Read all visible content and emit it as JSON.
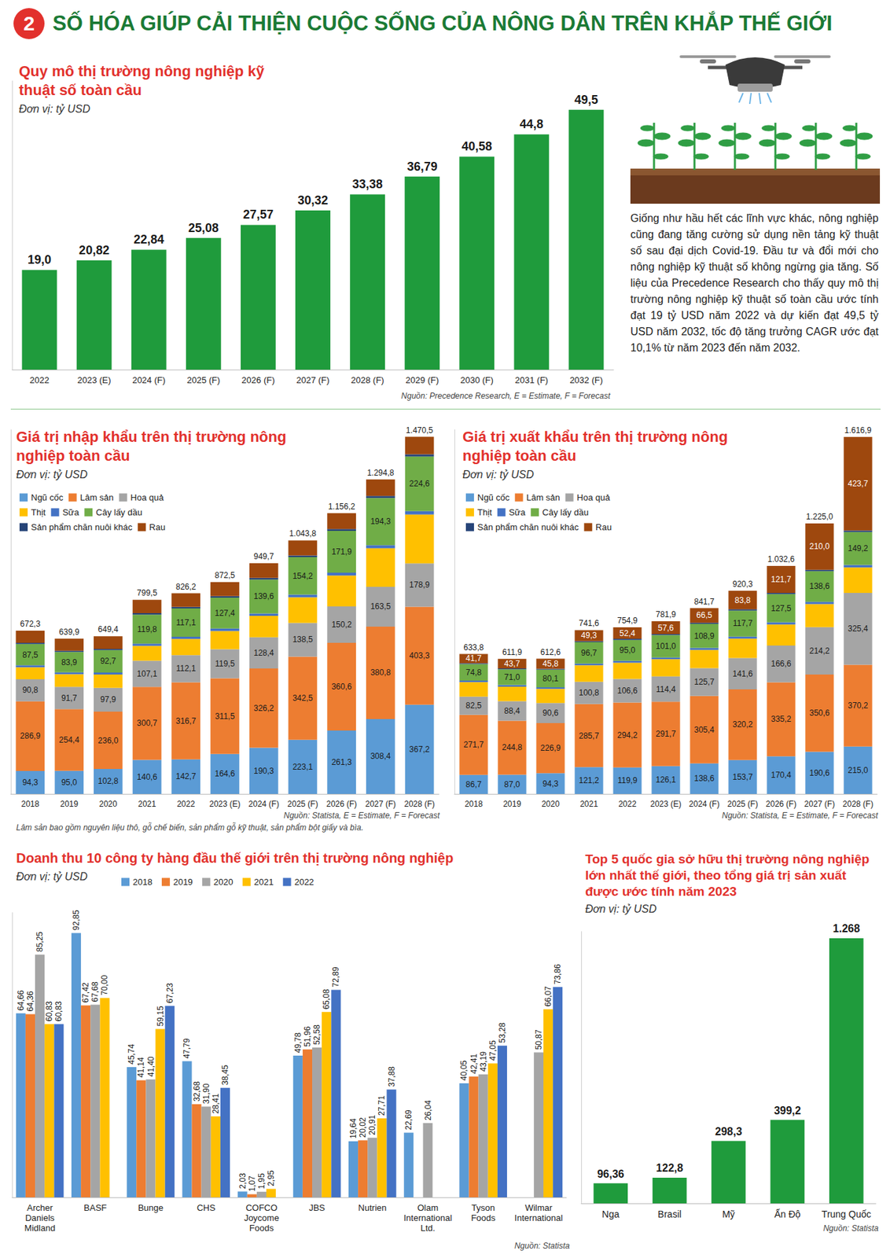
{
  "header": {
    "number": "2",
    "title": "SỐ HÓA GIÚP CẢI THIỆN CUỘC SỐNG CỦA NÔNG DÂN TRÊN KHẮP THẾ GIỚI"
  },
  "text": "Giống như hầu hết các lĩnh vực khác, nông nghiệp cũng đang tăng cường sử dụng nền tảng kỹ thuật số sau đại dịch Covid-19. Đầu tư và đổi mới cho nông nghiệp kỹ thuật số không ngừng gia tăng. Số liệu của Precedence Research cho thấy quy mô thị trường nông nghiệp kỹ thuật số toàn cầu ước tính đạt 19 tỷ USD năm 2022 và dự kiến đạt 49,5 tỷ USD năm 2032, tốc độ tăng trưởng CAGR ước đạt 10,1% từ năm 2023 đến năm 2032.",
  "chart_data": [
    {
      "type": "bar",
      "title": "Quy mô thị trường nông nghiệp kỹ thuật số toàn cầu",
      "subtitle": "Đơn vị: tỷ USD",
      "source": "Nguồn: Precedence Research, E = Estimate, F = Forecast",
      "categories": [
        "2022",
        "2023 (E)",
        "2024 (F)",
        "2025 (F)",
        "2026 (F)",
        "2027 (F)",
        "2028 (F)",
        "2029 (F)",
        "2030 (F)",
        "2031 (F)",
        "2032 (F)"
      ],
      "values": [
        19.0,
        20.82,
        22.84,
        25.08,
        27.57,
        30.32,
        33.38,
        36.79,
        40.58,
        44.8,
        49.5
      ],
      "value_labels": [
        "19,0",
        "20,82",
        "22,84",
        "25,08",
        "27,57",
        "30,32",
        "33,38",
        "36,79",
        "40,58",
        "44,8",
        "49,5"
      ],
      "color": "#1f9b3c",
      "ylim": [
        0,
        55
      ],
      "grid": false,
      "data_labels": true,
      "tick_labels": "x"
    },
    {
      "type": "bar",
      "title": "Giá trị nhập khẩu trên thị trường nông nghiệp toàn cầu",
      "subtitle": "Đơn vị: tỷ USD",
      "source": "Nguồn: Statista, E = Estimate, F = Forecast",
      "note": "Lâm sản bao gồm nguyên liệu thô, gỗ chế biến, sản phẩm gỗ kỹ thuật, sản phẩm bột giấy và bìa.",
      "categories": [
        "2018",
        "2019",
        "2020",
        "2021",
        "2022",
        "2023 (E)",
        "2024 (F)",
        "2025 (F)",
        "2026 (F)",
        "2027 (F)",
        "2028 (F)"
      ],
      "series": [
        {
          "name": "Ngũ cốc",
          "color": "#5b9bd5",
          "data_labels": true,
          "values": [
            94.3,
            95.0,
            102.8,
            140.6,
            142.7,
            164.6,
            190.3,
            223.1,
            261.3,
            308.4,
            367.2
          ],
          "value_labels": [
            "94,3",
            "95,0",
            "102,8",
            "140,6",
            "142,7",
            "164,6",
            "190,3",
            "223,1",
            "261,3",
            "308,4",
            "367,2"
          ]
        },
        {
          "name": "Lâm sản",
          "color": "#ed7d31",
          "data_labels": true,
          "values": [
            286.9,
            254.4,
            236.0,
            300.7,
            316.7,
            311.5,
            326.2,
            342.5,
            360.6,
            380.8,
            403.3
          ],
          "value_labels": [
            "286,9",
            "254,4",
            "236,0",
            "300,7",
            "316,7",
            "311,5",
            "326,2",
            "342,5",
            "360,6",
            "380,8",
            "403,3"
          ]
        },
        {
          "name": "Hoa quả",
          "color": "#a5a5a5",
          "data_labels": true,
          "values": [
            90.8,
            91.7,
            97.9,
            107.1,
            112.1,
            119.5,
            128.4,
            138.5,
            150.2,
            163.5,
            178.9
          ],
          "value_labels": [
            "90,8",
            "91,7",
            "97,9",
            "107,1",
            "112,1",
            "119,5",
            "128,4",
            "138,5",
            "150,2",
            "163,5",
            "178,9"
          ]
        },
        {
          "name": "Thịt",
          "color": "#ffc000",
          "data_labels": false,
          "values": [
            49.8,
            51.9,
            55.0,
            61.3,
            66.6,
            75.5,
            88.2,
            105.5,
            127.2,
            158.8,
            201.5
          ]
        },
        {
          "name": "Sữa",
          "color": "#4472c4",
          "data_labels": false,
          "values": [
            8,
            8,
            8,
            9,
            9,
            10,
            10,
            11,
            12,
            13,
            14
          ]
        },
        {
          "name": "Cây lấy dầu",
          "color": "#70ad47",
          "data_labels": true,
          "values": [
            87.5,
            83.9,
            92.7,
            119.8,
            117.1,
            127.4,
            139.6,
            154.2,
            171.9,
            194.3,
            224.6
          ],
          "value_labels": [
            "87,5",
            "83,9",
            "92,7",
            "119,8",
            "117,1",
            "127,4",
            "139,6",
            "154,2",
            "171,9",
            "194,3",
            "224,6"
          ]
        },
        {
          "name": "Sản phẩm chăn nuôi khác",
          "color": "#264478",
          "data_labels": false,
          "values": [
            5,
            5,
            5,
            6,
            6,
            6,
            7,
            7,
            8,
            8,
            9
          ]
        },
        {
          "name": "Rau",
          "color": "#9e480e",
          "data_labels": false,
          "values": [
            50,
            50,
            52,
            55,
            56,
            58,
            60,
            62,
            65,
            68,
            72
          ]
        }
      ],
      "totals": [
        672.3,
        639.9,
        649.4,
        799.5,
        826.2,
        872.5,
        949.7,
        1043.8,
        1156.2,
        1294.8,
        1470.5
      ],
      "total_labels": [
        "672,3",
        "639,9",
        "649,4",
        "799,5",
        "826,2",
        "872,5",
        "949,7",
        "1.043,8",
        "1.156,2",
        "1.294,8",
        "1.470,5"
      ],
      "stacked": true,
      "ylim": [
        0,
        1500
      ],
      "grid": false,
      "legend": "top-left",
      "data_labels": true,
      "tick_labels": "x"
    },
    {
      "type": "bar",
      "title": "Giá trị xuất khẩu trên thị trường nông nghiệp toàn cầu",
      "subtitle": "Đơn vị: tỷ USD",
      "source": "Nguồn: Statista, E = Estimate, F = Forecast",
      "categories": [
        "2018",
        "2019",
        "2020",
        "2021",
        "2022",
        "2023 (E)",
        "2024 (F)",
        "2025 (F)",
        "2026 (F)",
        "2027 (F)",
        "2028 (F)"
      ],
      "series": [
        {
          "name": "Ngũ cốc",
          "color": "#5b9bd5",
          "data_labels": true,
          "values": [
            86.7,
            87.0,
            94.3,
            121.2,
            119.9,
            126.1,
            138.6,
            153.7,
            170.4,
            190.6,
            215.0
          ],
          "value_labels": [
            "86,7",
            "87,0",
            "94,3",
            "121,2",
            "119,9",
            "126,1",
            "138,6",
            "153,7",
            "170,4",
            "190,6",
            "215,0"
          ]
        },
        {
          "name": "Lâm sản",
          "color": "#ed7d31",
          "data_labels": true,
          "values": [
            271.7,
            244.8,
            226.9,
            285.7,
            294.2,
            291.7,
            305.4,
            320.2,
            335.2,
            350.6,
            370.2
          ],
          "value_labels": [
            "271,7",
            "244,8",
            "226,9",
            "285,7",
            "294,2",
            "291,7",
            "305,4",
            "320,2",
            "335,2",
            "350,6",
            "370,2"
          ]
        },
        {
          "name": "Hoa quả",
          "color": "#a5a5a5",
          "data_labels": true,
          "values": [
            82.5,
            88.4,
            90.6,
            100.8,
            106.6,
            114.4,
            125.7,
            141.6,
            166.6,
            214.2,
            325.4
          ],
          "value_labels": [
            "82,5",
            "88,4",
            "90,6",
            "100,8",
            "106,6",
            "114,4",
            "125,7",
            "141,6",
            "166,6",
            "214,2",
            "325,4"
          ]
        },
        {
          "name": "Thịt",
          "color": "#ffc000",
          "data_labels": false,
          "values": [
            65.4,
            66.0,
            63.9,
            74.9,
            73.8,
            78.1,
            82.6,
            88.3,
            95.2,
            105.0,
            115.4
          ]
        },
        {
          "name": "Sữa",
          "color": "#4472c4",
          "data_labels": false,
          "values": [
            7,
            7,
            7,
            8,
            8,
            8,
            9,
            9,
            10,
            10,
            11
          ]
        },
        {
          "name": "Cây lấy dầu",
          "color": "#70ad47",
          "data_labels": true,
          "values": [
            74.8,
            71.0,
            80.1,
            96.7,
            95.0,
            101.0,
            108.9,
            117.7,
            127.5,
            138.6,
            149.2
          ],
          "value_labels": [
            "74,8",
            "71,0",
            "80,1",
            "96,7",
            "95,0",
            "101,0",
            "108,9",
            "117,7",
            "127,5",
            "138,6",
            "149,2"
          ]
        },
        {
          "name": "Sản phẩm chăn nuôi khác",
          "color": "#264478",
          "data_labels": false,
          "values": [
            4,
            4,
            4,
            5,
            5,
            5,
            5,
            6,
            6,
            6,
            7
          ]
        },
        {
          "name": "Rau",
          "color": "#9e480e",
          "data_labels": true,
          "values": [
            41.7,
            43.7,
            45.8,
            49.3,
            52.4,
            57.6,
            66.5,
            83.8,
            121.7,
            210.0,
            423.7
          ],
          "value_labels": [
            "41,7",
            "43,7",
            "45,8",
            "49,3",
            "52,4",
            "57,6",
            "66,5",
            "83,8",
            "121,7",
            "210,0",
            "423,7"
          ]
        }
      ],
      "totals": [
        633.8,
        611.9,
        612.6,
        741.6,
        754.9,
        781.9,
        841.7,
        920.3,
        1032.6,
        1225.0,
        1616.9
      ],
      "total_labels": [
        "633,8",
        "611,9",
        "612,6",
        "741,6",
        "754,9",
        "781,9",
        "841,7",
        "920,3",
        "1.032,6",
        "1.225,0",
        "1.616,9"
      ],
      "stacked": true,
      "ylim": [
        0,
        1650
      ],
      "grid": false,
      "legend": "top-left",
      "data_labels": true,
      "tick_labels": "x"
    },
    {
      "type": "bar",
      "title": "Doanh thu 10 công ty hàng đầu thế giới trên thị trường nông nghiệp",
      "subtitle": "Đơn vị: tỷ USD",
      "source": "Nguồn: Statista",
      "categories": [
        "Archer Daniels Midland",
        "BASF",
        "Bunge",
        "CHS",
        "COFCO Joycome Foods",
        "JBS",
        "Nutrien",
        "Olam International Ltd.",
        "Tyson Foods",
        "Wilmar International"
      ],
      "series": [
        {
          "name": "2018",
          "color": "#5b9bd5",
          "values": [
            64.66,
            92.85,
            45.74,
            47.79,
            2.03,
            49.78,
            19.64,
            22.69,
            40.05,
            null
          ],
          "value_labels": [
            "64,66",
            "92,85",
            "45,74",
            "47,79",
            "2,03",
            "49,78",
            "19,64",
            "22,69",
            "40,05",
            null
          ]
        },
        {
          "name": "2019",
          "color": "#ed7d31",
          "values": [
            64.36,
            67.42,
            41.14,
            32.68,
            1.07,
            51.96,
            20.02,
            null,
            42.41,
            null
          ],
          "value_labels": [
            "64,36",
            "67,42",
            "41,14",
            "32,68",
            "1,07",
            "51,96",
            "20,02",
            null,
            "42,41",
            null
          ]
        },
        {
          "name": "2020",
          "color": "#a5a5a5",
          "values": [
            85.25,
            67.68,
            41.4,
            31.9,
            1.95,
            52.58,
            20.91,
            26.04,
            43.19,
            50.87
          ],
          "value_labels": [
            "85,25",
            "67,68",
            "41,40",
            "31,90",
            "1,95",
            "52,58",
            "20,91",
            "26,04",
            "43,19",
            "50,87"
          ]
        },
        {
          "name": "2021",
          "color": "#ffc000",
          "values": [
            60.83,
            70.0,
            59.15,
            28.41,
            2.95,
            65.08,
            27.71,
            null,
            47.05,
            66.07
          ],
          "value_labels": [
            "60,83",
            "70,00",
            "59,15",
            "28,41",
            "2,95",
            "65,08",
            "27,71",
            null,
            "47,05",
            "66,07"
          ]
        },
        {
          "name": "2022",
          "color": "#4472c4",
          "values": [
            60.83,
            null,
            67.23,
            38.45,
            null,
            72.89,
            37.88,
            null,
            53.28,
            73.86
          ],
          "value_labels": [
            "60,83",
            null,
            "67,23",
            "38,45",
            null,
            "72,89",
            "37,88",
            null,
            "53,28",
            "73,86"
          ]
        }
      ],
      "ylim": [
        0,
        100
      ],
      "grid": false,
      "legend": "top",
      "data_labels": true,
      "tick_labels": "x"
    },
    {
      "type": "bar",
      "title": "Top 5 quốc gia sở hữu thị trường nông nghiệp lớn nhất thế giới, theo tổng giá trị sản xuất được ước tính năm 2023",
      "subtitle": "Đơn vị: tỷ USD",
      "source": "Nguồn: Statista",
      "categories": [
        "Nga",
        "Brasil",
        "Mỹ",
        "Ấn Độ",
        "Trung Quốc"
      ],
      "values": [
        96.36,
        122.8,
        298.3,
        399.2,
        1268
      ],
      "value_labels": [
        "96,36",
        "122,8",
        "298,3",
        "399,2",
        "1.268"
      ],
      "color": "#1f9b3c",
      "ylim": [
        0,
        1300
      ],
      "grid": false,
      "data_labels": true,
      "tick_labels": "x"
    }
  ]
}
